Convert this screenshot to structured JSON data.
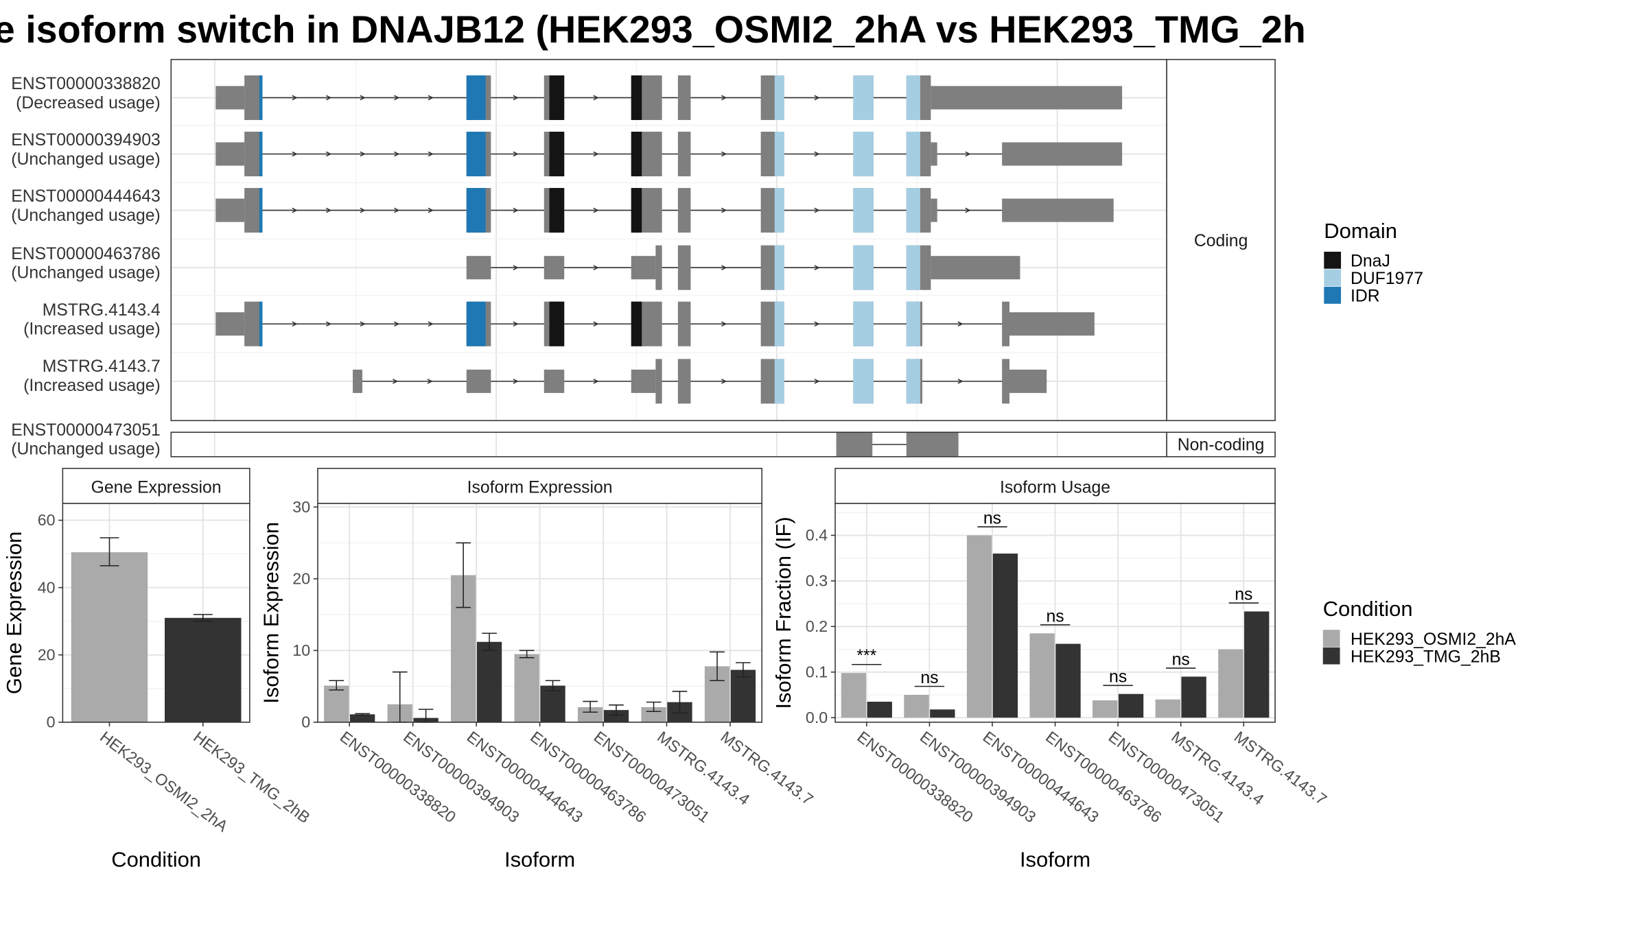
{
  "title": "e isoform switch in DNAJB12 (HEK293_OSMI2_2hA vs HEK293_TMG_2h",
  "colors": {
    "exon": "#7f7f7f",
    "DnaJ": "#141414",
    "DUF1977": "#a6cee3",
    "IDR": "#1f78b4",
    "HEK293_OSMI2_2hA": "#aaaaaa",
    "HEK293_TMG_2hB": "#333333"
  },
  "structure": {
    "coding_strip": "Coding",
    "noncoding_strip": "Non-coding",
    "isoforms": [
      {
        "id": "ENST00000338820",
        "usage": "(Decreased usage)",
        "coding": true
      },
      {
        "id": "ENST00000394903",
        "usage": "(Unchanged usage)",
        "coding": true
      },
      {
        "id": "ENST00000444643",
        "usage": "(Unchanged usage)",
        "coding": true
      },
      {
        "id": "ENST00000463786",
        "usage": "(Unchanged usage)",
        "coding": true
      },
      {
        "id": "MSTRG.4143.4",
        "usage": "(Increased usage)",
        "coding": true
      },
      {
        "id": "MSTRG.4143.7",
        "usage": "(Increased usage)",
        "coding": true
      },
      {
        "id": "ENST00000473051",
        "usage": "(Unchanged usage)",
        "coding": false
      }
    ]
  },
  "domain_legend": {
    "title": "Domain",
    "items": [
      {
        "name": "DnaJ",
        "color": "#141414"
      },
      {
        "name": "DUF1977",
        "color": "#a6cee3"
      },
      {
        "name": "IDR",
        "color": "#1f78b4"
      }
    ]
  },
  "condition_legend": {
    "title": "Condition",
    "items": [
      {
        "name": "HEK293_OSMI2_2hA",
        "color": "#aaaaaa"
      },
      {
        "name": "HEK293_TMG_2hB",
        "color": "#333333"
      }
    ]
  },
  "chart_data": [
    {
      "type": "bar",
      "title": "Gene Expression",
      "xlabel": "Condition",
      "ylabel": "Gene Expression",
      "ylim": [
        0,
        65
      ],
      "yticks": [
        0,
        20,
        40,
        60
      ],
      "categories": [
        "HEK293_OSMI2_2hA",
        "HEK293_TMG_2hB"
      ],
      "values": [
        50.5,
        31.0
      ],
      "errors": [
        [
          46.5,
          54.8
        ],
        [
          30.0,
          32.0
        ]
      ]
    },
    {
      "type": "bar",
      "title": "Isoform Expression",
      "xlabel": "Isoform",
      "ylabel": "Isoform Expression",
      "ylim": [
        0,
        30.5
      ],
      "yticks": [
        0,
        10,
        20,
        30
      ],
      "categories": [
        "ENST00000338820",
        "ENST00000394903",
        "ENST00000444643",
        "ENST00000463786",
        "ENST00000473051",
        "MSTRG.4143.4",
        "MSTRG.4143.7"
      ],
      "series": [
        {
          "name": "HEK293_OSMI2_2hA",
          "values": [
            5.1,
            2.5,
            20.5,
            9.5,
            2.1,
            2.1,
            7.8
          ],
          "errors": [
            [
              4.5,
              5.8
            ],
            [
              0.0,
              7.0
            ],
            [
              16.0,
              25.0
            ],
            [
              9.0,
              10.0
            ],
            [
              1.4,
              2.9
            ],
            [
              1.5,
              2.8
            ],
            [
              5.8,
              9.8
            ]
          ]
        },
        {
          "name": "HEK293_TMG_2hB",
          "values": [
            1.1,
            0.6,
            11.2,
            5.1,
            1.7,
            2.8,
            7.3
          ],
          "errors": [
            [
              1.0,
              1.2
            ],
            [
              0.0,
              1.8
            ],
            [
              10.0,
              12.4
            ],
            [
              4.4,
              5.8
            ],
            [
              1.0,
              2.4
            ],
            [
              1.3,
              4.3
            ],
            [
              6.3,
              8.3
            ]
          ]
        }
      ]
    },
    {
      "type": "bar",
      "title": "Isoform Usage",
      "xlabel": "Isoform",
      "ylabel": "Isoform Fraction (IF)",
      "ylim": [
        -0.01,
        0.47
      ],
      "yticks": [
        0.0,
        0.1,
        0.2,
        0.3,
        0.4
      ],
      "categories": [
        "ENST00000338820",
        "ENST00000394903",
        "ENST00000444643",
        "ENST00000463786",
        "ENST00000473051",
        "MSTRG.4143.4",
        "MSTRG.4143.7"
      ],
      "series": [
        {
          "name": "HEK293_OSMI2_2hA",
          "values": [
            0.098,
            0.05,
            0.4,
            0.185,
            0.038,
            0.04,
            0.15
          ]
        },
        {
          "name": "HEK293_TMG_2hB",
          "values": [
            0.035,
            0.018,
            0.36,
            0.162,
            0.052,
            0.09,
            0.233
          ]
        }
      ],
      "significance": [
        "***",
        "ns",
        "ns",
        "ns",
        "ns",
        "ns",
        "ns"
      ]
    }
  ]
}
